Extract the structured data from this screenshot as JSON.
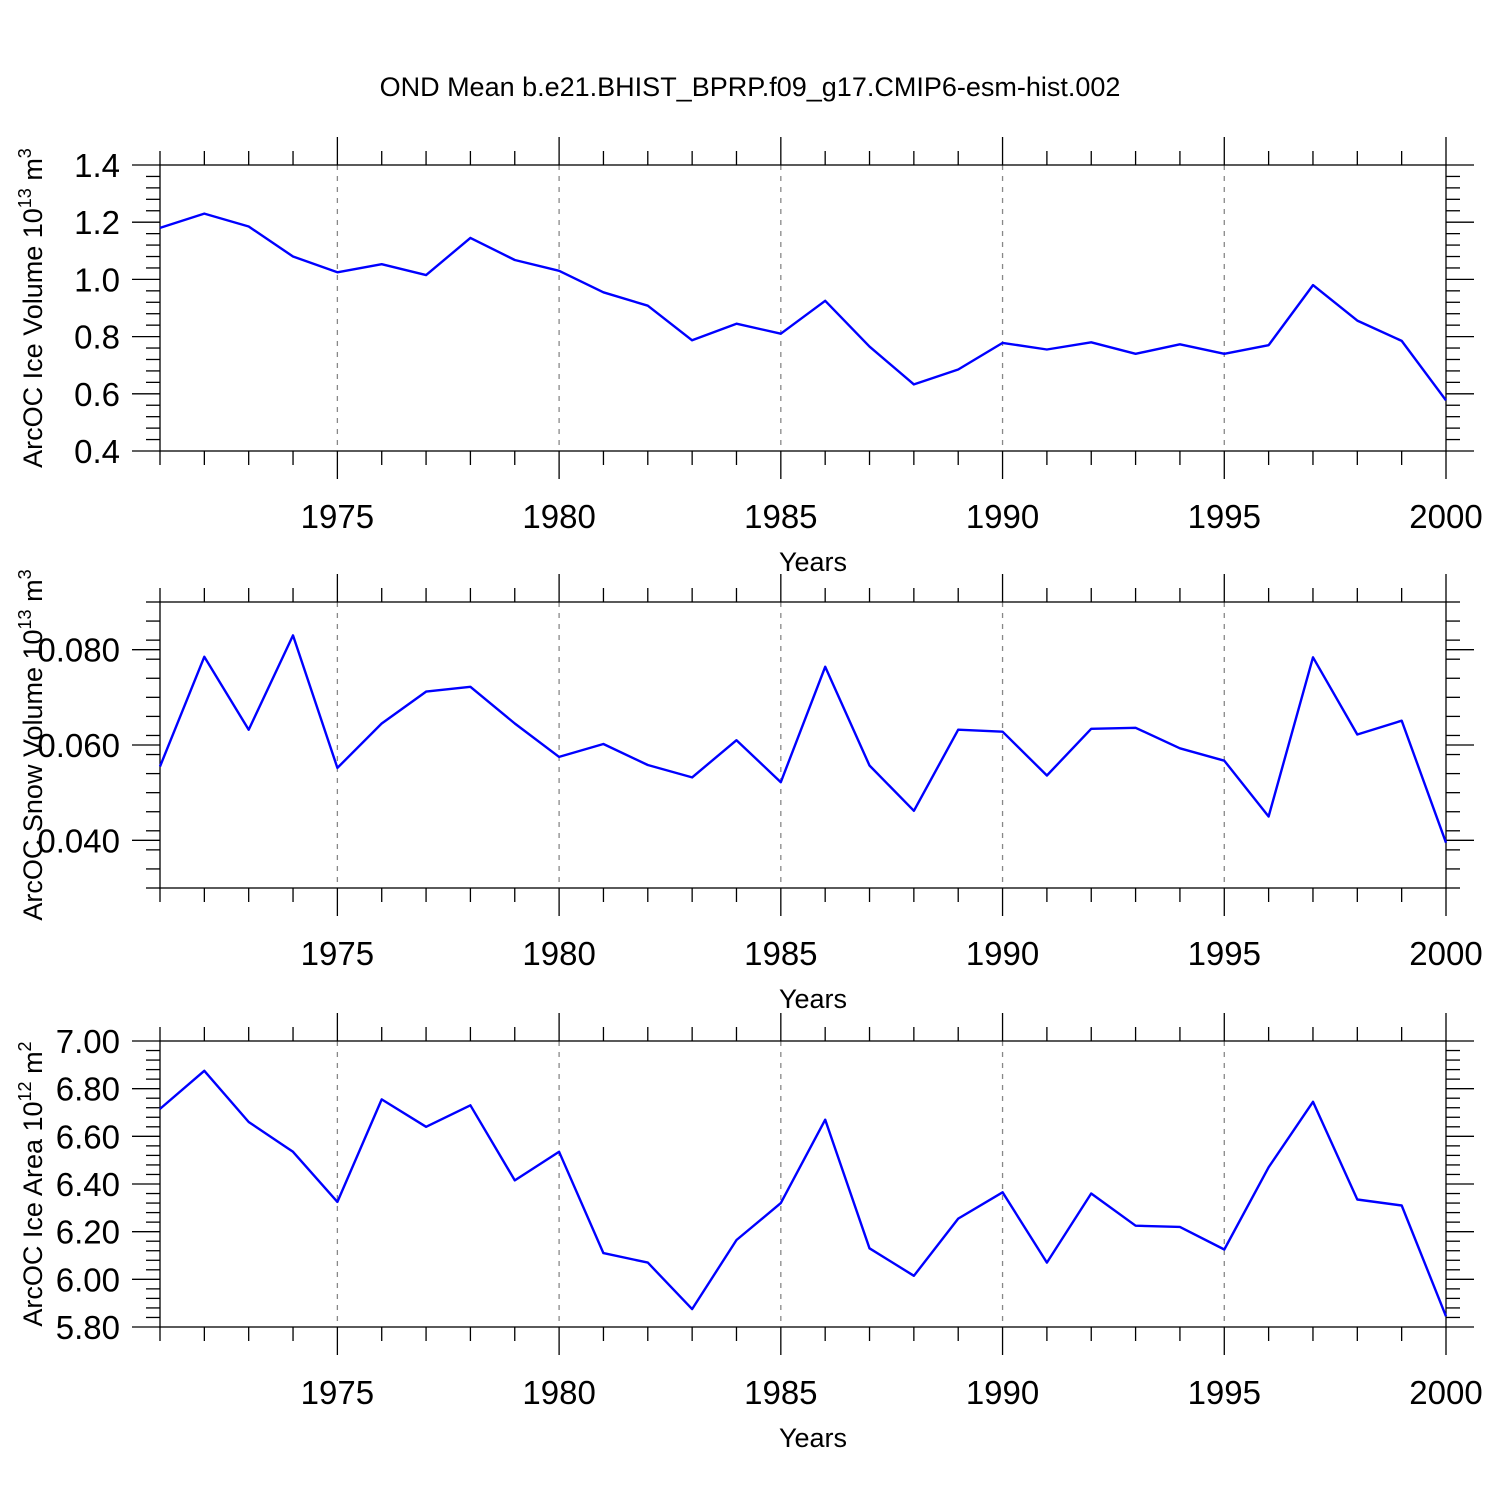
{
  "figure": {
    "title": "OND Mean b.e21.BHIST_BPRP.f09_g17.CMIP6-esm-hist.002",
    "line_color": "#0000ff",
    "grid_color": "#888888"
  },
  "chart_data": [
    {
      "type": "line",
      "ylabel": "ArcOC Ice Volume 10",
      "ylabel_sup": "13",
      "ylabel_unit": " m",
      "ylabel_unit_sup": "3",
      "xlabel": "Years",
      "xlim": [
        1971,
        2000
      ],
      "ylim": [
        0.4,
        1.4
      ],
      "yticks": [
        0.4,
        0.6,
        0.8,
        1.0,
        1.2,
        1.4
      ],
      "ytick_labels": [
        "0.4",
        "0.6",
        "0.8",
        "1.0",
        "1.2",
        "1.4"
      ],
      "xticks": [
        1975,
        1980,
        1985,
        1990,
        1995,
        2000
      ],
      "xtick_labels": [
        "1975",
        "1980",
        "1985",
        "1990",
        "1995",
        "2000"
      ],
      "x": [
        1971,
        1972,
        1973,
        1974,
        1975,
        1976,
        1977,
        1978,
        1979,
        1980,
        1981,
        1982,
        1983,
        1984,
        1985,
        1986,
        1987,
        1988,
        1989,
        1990,
        1991,
        1992,
        1993,
        1994,
        1995,
        1996,
        1997,
        1998,
        1999,
        2000
      ],
      "y": [
        1.18,
        1.23,
        1.185,
        1.08,
        1.025,
        1.053,
        1.015,
        1.145,
        1.068,
        1.03,
        0.955,
        0.908,
        0.787,
        0.845,
        0.81,
        0.925,
        0.765,
        0.633,
        0.685,
        0.778,
        0.755,
        0.78,
        0.74,
        0.773,
        0.74,
        0.77,
        0.98,
        0.856,
        0.785,
        0.577
      ]
    },
    {
      "type": "line",
      "ylabel": "ArcOC Snow Volume 10",
      "ylabel_sup": "13",
      "ylabel_unit": " m",
      "ylabel_unit_sup": "3",
      "xlabel": "Years",
      "xlim": [
        1971,
        2000
      ],
      "ylim": [
        0.03,
        0.09
      ],
      "yticks": [
        0.04,
        0.06,
        0.08
      ],
      "ytick_labels": [
        "0.040",
        "0.060",
        "0.080"
      ],
      "xticks": [
        1975,
        1980,
        1985,
        1990,
        1995,
        2000
      ],
      "xtick_labels": [
        "1975",
        "1980",
        "1985",
        "1990",
        "1995",
        "2000"
      ],
      "x": [
        1971,
        1972,
        1973,
        1974,
        1975,
        1976,
        1977,
        1978,
        1979,
        1980,
        1981,
        1982,
        1983,
        1984,
        1985,
        1986,
        1987,
        1988,
        1989,
        1990,
        1991,
        1992,
        1993,
        1994,
        1995,
        1996,
        1997,
        1998,
        1999,
        2000
      ],
      "y": [
        0.0555,
        0.0785,
        0.0632,
        0.083,
        0.0552,
        0.0645,
        0.0712,
        0.0722,
        0.0645,
        0.0575,
        0.0602,
        0.0558,
        0.0532,
        0.061,
        0.0522,
        0.0764,
        0.0557,
        0.0462,
        0.0632,
        0.0628,
        0.0536,
        0.0634,
        0.0636,
        0.0593,
        0.0567,
        0.045,
        0.0784,
        0.0622,
        0.0651,
        0.0395
      ]
    },
    {
      "type": "line",
      "ylabel": "ArcOC Ice Area 10",
      "ylabel_sup": "12",
      "ylabel_unit": " m",
      "ylabel_unit_sup": "2",
      "xlabel": "Years",
      "xlim": [
        1971,
        2000
      ],
      "ylim": [
        5.8,
        7.0
      ],
      "yticks": [
        5.8,
        6.0,
        6.2,
        6.4,
        6.6,
        6.8,
        7.0
      ],
      "ytick_labels": [
        "5.80",
        "6.00",
        "6.20",
        "6.40",
        "6.60",
        "6.80",
        "7.00"
      ],
      "xticks": [
        1975,
        1980,
        1985,
        1990,
        1995,
        2000
      ],
      "xtick_labels": [
        "1975",
        "1980",
        "1985",
        "1990",
        "1995",
        "2000"
      ],
      "x": [
        1971,
        1972,
        1973,
        1974,
        1975,
        1976,
        1977,
        1978,
        1979,
        1980,
        1981,
        1982,
        1983,
        1984,
        1985,
        1986,
        1987,
        1988,
        1989,
        1990,
        1991,
        1992,
        1993,
        1994,
        1995,
        1996,
        1997,
        1998,
        1999,
        2000
      ],
      "y": [
        6.715,
        6.875,
        6.66,
        6.535,
        6.325,
        6.755,
        6.64,
        6.73,
        6.415,
        6.535,
        6.11,
        6.07,
        5.875,
        6.165,
        6.32,
        6.67,
        6.13,
        6.015,
        6.255,
        6.365,
        6.07,
        6.36,
        6.225,
        6.22,
        6.125,
        6.47,
        6.745,
        6.335,
        6.31,
        5.845
      ]
    }
  ]
}
